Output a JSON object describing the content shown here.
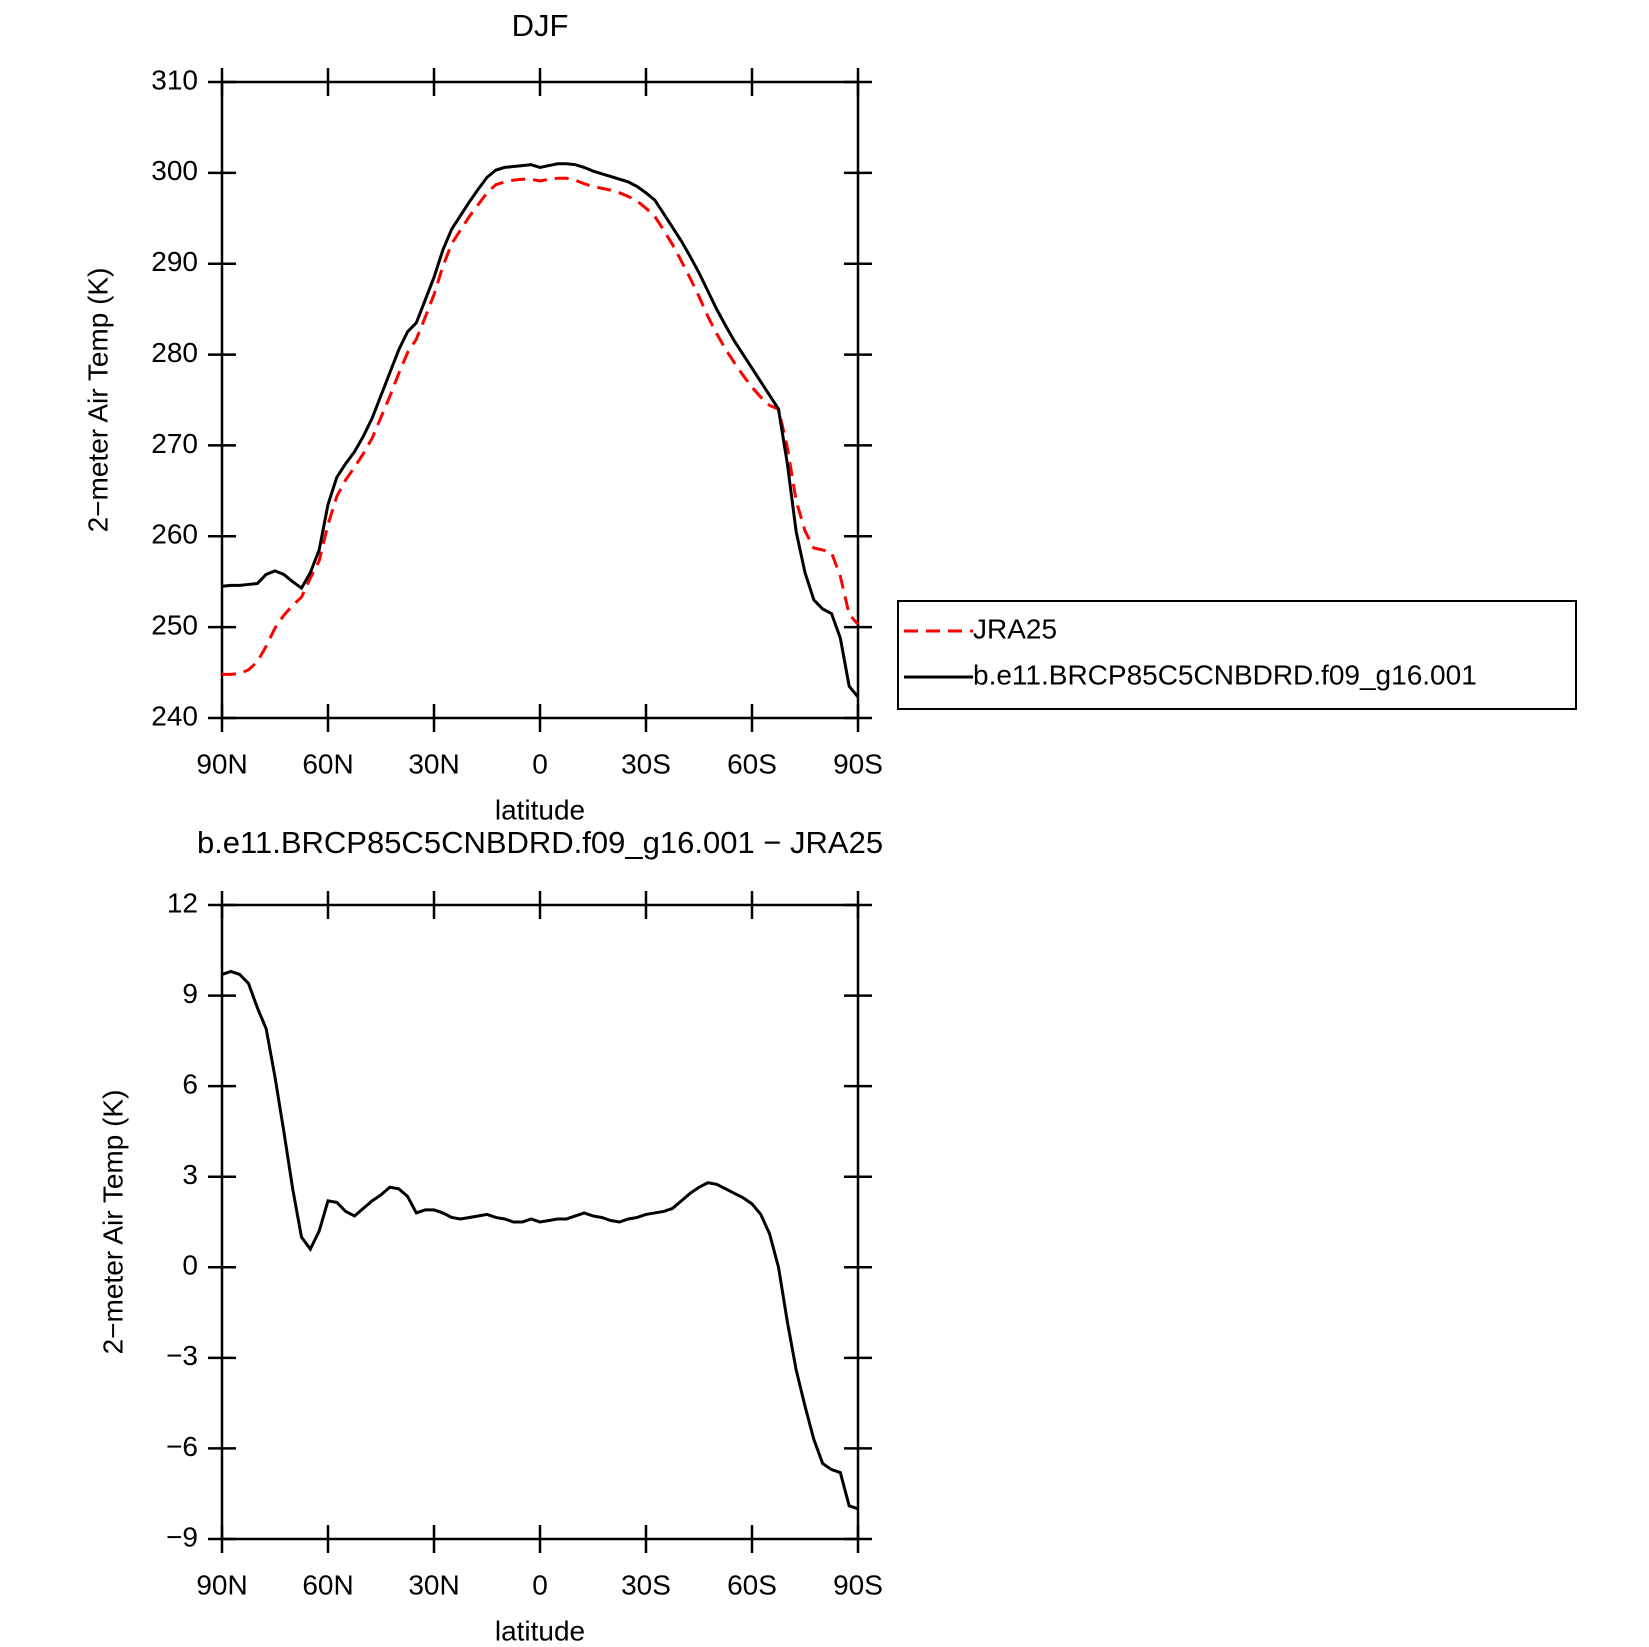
{
  "chart_data": [
    {
      "type": "line",
      "title": "DJF",
      "xlabel": "latitude",
      "ylabel": "2−meter Air Temp (K)",
      "xlim": [
        90,
        -90
      ],
      "xticks": [
        {
          "value": 90,
          "label": "90N"
        },
        {
          "value": 60,
          "label": "60N"
        },
        {
          "value": 30,
          "label": "30N"
        },
        0,
        {
          "value": -30,
          "label": "30S"
        },
        {
          "value": -60,
          "label": "60S"
        },
        {
          "value": -90,
          "label": "90S"
        }
      ],
      "ylim": [
        240,
        310
      ],
      "yticks": [
        240,
        250,
        260,
        270,
        280,
        290,
        300,
        310
      ],
      "legend": "right",
      "x": [
        90,
        87.5,
        85,
        82.5,
        80,
        77.5,
        75,
        72.5,
        70,
        67.5,
        65,
        62.5,
        60,
        57.5,
        55,
        52.5,
        50,
        47.5,
        45,
        42.5,
        40,
        37.5,
        35,
        32.5,
        30,
        27.5,
        25,
        22.5,
        20,
        17.5,
        15,
        12.5,
        10,
        7.5,
        5,
        2.5,
        0,
        -2.5,
        -5,
        -7.5,
        -10,
        -12.5,
        -15,
        -17.5,
        -20,
        -22.5,
        -25,
        -27.5,
        -30,
        -32.5,
        -35,
        -37.5,
        -40,
        -42.5,
        -45,
        -47.5,
        -50,
        -52.5,
        -55,
        -57.5,
        -60,
        -62.5,
        -65,
        -67.5,
        -70,
        -72.5,
        -75,
        -77.5,
        -80,
        -82.5,
        -85,
        -87.5,
        -90
      ],
      "series": [
        {
          "name": "JRA25",
          "color": "#ff0000",
          "linestyle": "dashed",
          "values": [
            244.8,
            244.8,
            244.9,
            245.3,
            246.2,
            247.9,
            249.9,
            251.3,
            252.4,
            253.3,
            255.4,
            257.3,
            261.3,
            264.4,
            266.2,
            267.6,
            269.1,
            270.8,
            273.1,
            275.4,
            277.9,
            280.2,
            281.7,
            284.1,
            286.6,
            289.7,
            292.2,
            293.7,
            295.2,
            296.5,
            297.8,
            298.7,
            299.0,
            299.2,
            299.3,
            299.3,
            299.1,
            299.3,
            299.4,
            299.4,
            299.2,
            298.8,
            298.5,
            298.3,
            298.1,
            297.8,
            297.4,
            296.9,
            296.1,
            295.2,
            293.7,
            292.1,
            290.3,
            288.4,
            286.4,
            284.2,
            282.3,
            280.6,
            279.1,
            277.7,
            276.4,
            275.3,
            274.4,
            274.0,
            269.8,
            263.9,
            260.6,
            258.7,
            258.5,
            258.2,
            255.6,
            251.4,
            250.3
          ]
        },
        {
          "name": "b.e11.BRCP85C5CNBDRD.f09_g16.001",
          "color": "#000000",
          "linestyle": "solid",
          "values": [
            254.5,
            254.6,
            254.6,
            254.7,
            254.8,
            255.8,
            256.2,
            255.8,
            255.0,
            254.3,
            256.0,
            258.5,
            263.5,
            266.5,
            268.0,
            269.3,
            271.0,
            273.0,
            275.5,
            278.0,
            280.5,
            282.5,
            283.5,
            286.0,
            288.5,
            291.5,
            293.8,
            295.3,
            296.8,
            298.2,
            299.5,
            300.3,
            300.6,
            300.7,
            300.8,
            300.9,
            300.6,
            300.8,
            301.0,
            301.0,
            300.9,
            300.6,
            300.2,
            299.9,
            299.6,
            299.3,
            299.0,
            298.5,
            297.8,
            297.0,
            295.5,
            294.0,
            292.5,
            290.8,
            289.0,
            287.0,
            285.0,
            283.2,
            281.5,
            280.0,
            278.5,
            277.0,
            275.5,
            274.0,
            268.0,
            260.5,
            256.0,
            253.0,
            252.0,
            251.5,
            248.8,
            243.5,
            242.3
          ]
        }
      ]
    },
    {
      "type": "line",
      "title": "b.e11.BRCP85C5CNBDRD.f09_g16.001 − JRA25",
      "xlabel": "latitude",
      "ylabel": "2−meter Air Temp (K)",
      "xlim": [
        90,
        -90
      ],
      "xticks": [
        {
          "value": 90,
          "label": "90N"
        },
        {
          "value": 60,
          "label": "60N"
        },
        {
          "value": 30,
          "label": "30N"
        },
        0,
        {
          "value": -30,
          "label": "30S"
        },
        {
          "value": -60,
          "label": "60S"
        },
        {
          "value": -90,
          "label": "90S"
        }
      ],
      "ylim": [
        -9,
        12
      ],
      "yticks": [
        {
          "value": -9,
          "label": "−9"
        },
        {
          "value": -6,
          "label": "−6"
        },
        {
          "value": -3,
          "label": "−3"
        },
        0,
        3,
        6,
        9,
        12
      ],
      "color": "#000000",
      "x": [
        90,
        87.5,
        85,
        82.5,
        80,
        77.5,
        75,
        72.5,
        70,
        67.5,
        65,
        62.5,
        60,
        57.5,
        55,
        52.5,
        50,
        47.5,
        45,
        42.5,
        40,
        37.5,
        35,
        32.5,
        30,
        27.5,
        25,
        22.5,
        20,
        17.5,
        15,
        12.5,
        10,
        7.5,
        5,
        2.5,
        0,
        -2.5,
        -5,
        -7.5,
        -10,
        -12.5,
        -15,
        -17.5,
        -20,
        -22.5,
        -25,
        -27.5,
        -30,
        -32.5,
        -35,
        -37.5,
        -40,
        -42.5,
        -45,
        -47.5,
        -50,
        -52.5,
        -55,
        -57.5,
        -60,
        -62.5,
        -65,
        -67.5,
        -70,
        -72.5,
        -75,
        -77.5,
        -80,
        -82.5,
        -85,
        -87.5,
        -90
      ],
      "values": [
        9.7,
        9.8,
        9.7,
        9.4,
        8.6,
        7.9,
        6.3,
        4.5,
        2.6,
        1.0,
        0.6,
        1.2,
        2.2,
        2.15,
        1.85,
        1.7,
        1.95,
        2.2,
        2.4,
        2.65,
        2.6,
        2.35,
        1.8,
        1.9,
        1.9,
        1.8,
        1.65,
        1.6,
        1.65,
        1.7,
        1.75,
        1.65,
        1.6,
        1.5,
        1.5,
        1.6,
        1.5,
        1.55,
        1.6,
        1.6,
        1.7,
        1.8,
        1.7,
        1.65,
        1.55,
        1.5,
        1.6,
        1.65,
        1.75,
        1.8,
        1.85,
        1.95,
        2.2,
        2.45,
        2.65,
        2.8,
        2.75,
        2.6,
        2.45,
        2.3,
        2.1,
        1.75,
        1.1,
        0.0,
        -1.8,
        -3.4,
        -4.6,
        -5.7,
        -6.5,
        -6.7,
        -6.8,
        -7.9,
        -8.0
      ]
    }
  ]
}
